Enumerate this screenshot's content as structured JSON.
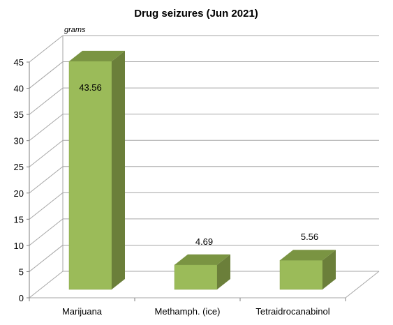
{
  "chart_data": {
    "type": "bar",
    "title": "Drug seizures (Jun 2021)",
    "unit_label": "grams",
    "categories": [
      "Marijuana",
      "Methamph. (ice)",
      "Tetraidrocanabinol"
    ],
    "values": [
      43.56,
      4.69,
      5.56
    ],
    "data_labels": [
      "43.56",
      "4.69",
      "5.56"
    ],
    "ylim": [
      0,
      45
    ],
    "yticks": [
      "0",
      "5",
      "10",
      "15",
      "20",
      "25",
      "30",
      "35",
      "40",
      "45"
    ],
    "grid": true,
    "three_d": true,
    "legend": "none"
  },
  "colors": {
    "bar_front": "#9bbb59",
    "bar_side": "#6b7f3a",
    "bar_top": "#7a9442",
    "grid": "#a6a6a6",
    "axis": "#7f7f7f"
  }
}
